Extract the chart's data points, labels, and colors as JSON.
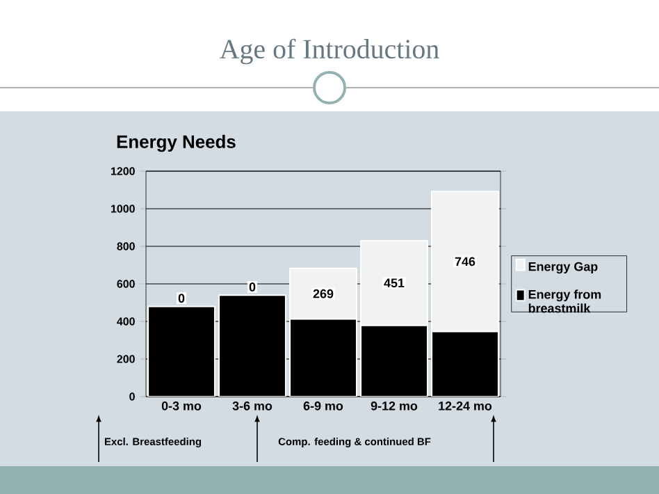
{
  "chart_data": {
    "type": "bar",
    "stacked": true,
    "title": "Age of Introduction",
    "subtitle": "Energy Needs",
    "categories": [
      "0-3 mo",
      "3-6 mo",
      "6-9 mo",
      "9-12 mo",
      "12-24 mo"
    ],
    "series": [
      {
        "name": "Energy from breastmilk",
        "color": "#000000",
        "values": [
          480,
          540,
          413,
          379,
          346
        ]
      },
      {
        "name": "Energy Gap",
        "color": "#f2f2f2",
        "values": [
          0,
          0,
          269,
          451,
          746
        ],
        "value_labels": [
          "0",
          "0",
          "269",
          "451",
          "746"
        ]
      }
    ],
    "ylim": [
      0,
      1200
    ],
    "yticks": [
      0,
      200,
      400,
      600,
      800,
      1000,
      1200
    ],
    "grid": "y",
    "legend": "right",
    "annotations": [
      "Excl. Breastfeeding",
      "Comp. feeding & continued BF"
    ]
  }
}
